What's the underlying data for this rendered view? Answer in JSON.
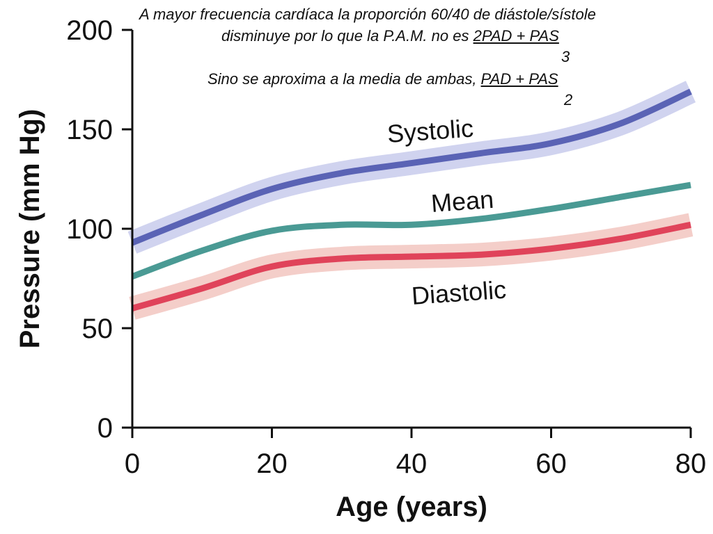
{
  "annotation": {
    "line1": "A mayor frecuencia cardíaca la proporción 60/40 de diástole/sístole",
    "line2_text": "disminuye por lo que la P.A.M. no es ",
    "line2_numerator": "2PAD + PAS",
    "line2_denominator": "3",
    "line3_text": "Sino se aproxima a la media de ambas, ",
    "line3_numerator": "PAD + PAS",
    "line3_denominator": "2"
  },
  "chart_data": {
    "type": "line",
    "title": "",
    "xlabel": "Age (years)",
    "ylabel": "Pressure (mm Hg)",
    "xlim": [
      0,
      80
    ],
    "ylim": [
      0,
      200
    ],
    "xticks": [
      0,
      20,
      40,
      60,
      80
    ],
    "yticks": [
      0,
      50,
      100,
      150,
      200
    ],
    "grid": false,
    "legend": "none",
    "series": [
      {
        "name": "Systolic",
        "color": "#5a63b5",
        "band_color": "#c8cbec",
        "x": [
          0,
          10,
          20,
          30,
          40,
          50,
          60,
          70,
          80
        ],
        "y": [
          93,
          107,
          120,
          128,
          133,
          138,
          143,
          153,
          169
        ]
      },
      {
        "name": "Mean",
        "color": "#4a9a94",
        "x": [
          0,
          10,
          20,
          30,
          40,
          50,
          60,
          70,
          80
        ],
        "y": [
          76,
          89,
          99,
          102,
          102,
          105,
          110,
          116,
          122
        ]
      },
      {
        "name": "Diastolic",
        "color": "#e0435a",
        "band_color": "#f2c6c0",
        "x": [
          0,
          10,
          20,
          30,
          40,
          50,
          60,
          70,
          80
        ],
        "y": [
          60,
          70,
          81,
          85,
          86,
          87,
          90,
          95,
          102
        ]
      }
    ]
  }
}
